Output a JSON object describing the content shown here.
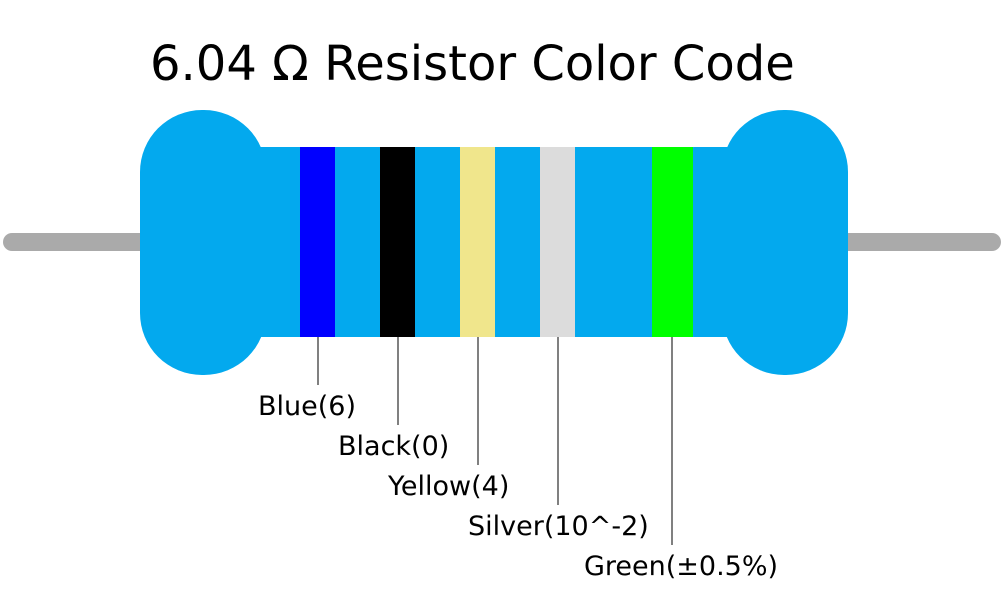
{
  "title": "6.04 Ω Resistor Color Code",
  "bands": [
    {
      "label": "Blue(6)"
    },
    {
      "label": "Black(0)"
    },
    {
      "label": "Yellow(4)"
    },
    {
      "label": "Silver(10^-2)"
    },
    {
      "label": "Green(±0.5%)"
    }
  ]
}
